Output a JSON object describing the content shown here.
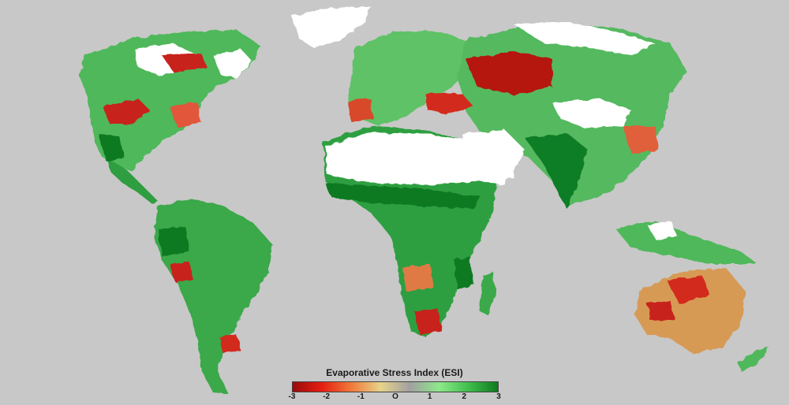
{
  "map": {
    "type": "choropleth-raster",
    "colors": {
      "ocean": "#c8c8c8",
      "no_data": "#ffffff",
      "strong_dry": "#b0120f",
      "dry": "#e8412a",
      "mild_dry": "#d9a35a",
      "neutral": "#9e9e9e",
      "mild_wet": "#8fdc8a",
      "wet": "#3cae4a",
      "strong_wet": "#0f7a22"
    }
  },
  "legend": {
    "title": "Evaporative Stress Index (ESI)",
    "ticks": [
      "-3",
      "-2",
      "-1",
      "O",
      "1",
      "2",
      "3"
    ],
    "range": [
      -3,
      3
    ],
    "gradient": [
      "#9a0a0a",
      "#e51f12",
      "#f07a3a",
      "#e7d38a",
      "#a0a0a0",
      "#8ee88a",
      "#3fbf4d",
      "#0e7a1f"
    ]
  }
}
